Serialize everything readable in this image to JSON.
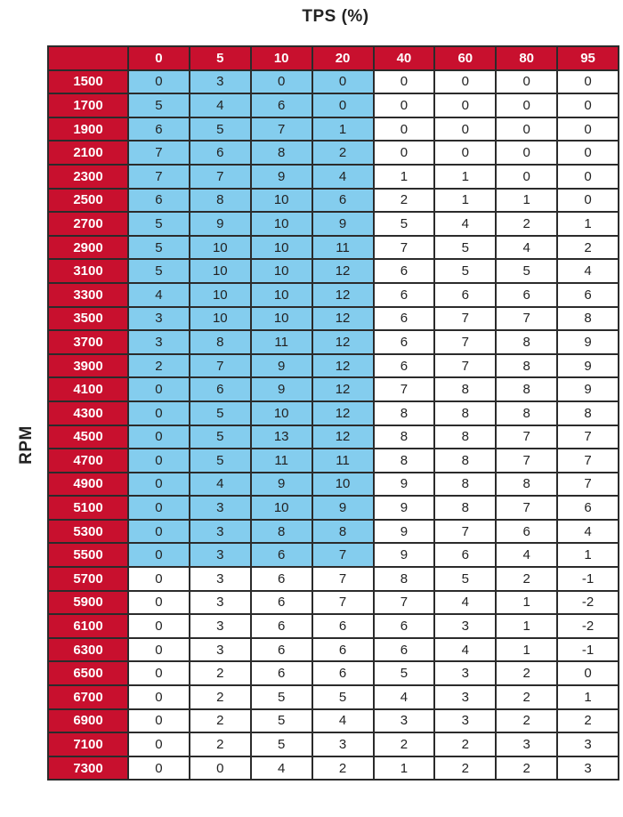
{
  "chart_data": {
    "type": "table",
    "title": "TPS (%)",
    "ylabel": "RPM",
    "colors": {
      "header": "#c8102e",
      "highlight": "#84cdee",
      "cell": "#ffffff"
    },
    "highlighted_region": {
      "rpm": [
        1500,
        5500
      ],
      "tps": [
        0,
        20
      ]
    },
    "columns": [
      "0",
      "5",
      "10",
      "20",
      "40",
      "60",
      "80",
      "95"
    ],
    "rows": [
      {
        "rpm": "1500",
        "values": [
          0,
          3,
          0,
          0,
          0,
          0,
          0,
          0
        ]
      },
      {
        "rpm": "1700",
        "values": [
          5,
          4,
          6,
          0,
          0,
          0,
          0,
          0
        ]
      },
      {
        "rpm": "1900",
        "values": [
          6,
          5,
          7,
          1,
          0,
          0,
          0,
          0
        ]
      },
      {
        "rpm": "2100",
        "values": [
          7,
          6,
          8,
          2,
          0,
          0,
          0,
          0
        ]
      },
      {
        "rpm": "2300",
        "values": [
          7,
          7,
          9,
          4,
          1,
          1,
          0,
          0
        ]
      },
      {
        "rpm": "2500",
        "values": [
          6,
          8,
          10,
          6,
          2,
          1,
          1,
          0
        ]
      },
      {
        "rpm": "2700",
        "values": [
          5,
          9,
          10,
          9,
          5,
          4,
          2,
          1
        ]
      },
      {
        "rpm": "2900",
        "values": [
          5,
          10,
          10,
          11,
          7,
          5,
          4,
          2
        ]
      },
      {
        "rpm": "3100",
        "values": [
          5,
          10,
          10,
          12,
          6,
          5,
          5,
          4
        ]
      },
      {
        "rpm": "3300",
        "values": [
          4,
          10,
          10,
          12,
          6,
          6,
          6,
          6
        ]
      },
      {
        "rpm": "3500",
        "values": [
          3,
          10,
          10,
          12,
          6,
          7,
          7,
          8
        ]
      },
      {
        "rpm": "3700",
        "values": [
          3,
          8,
          11,
          12,
          6,
          7,
          8,
          9
        ]
      },
      {
        "rpm": "3900",
        "values": [
          2,
          7,
          9,
          12,
          6,
          7,
          8,
          9
        ]
      },
      {
        "rpm": "4100",
        "values": [
          0,
          6,
          9,
          12,
          7,
          8,
          8,
          9
        ]
      },
      {
        "rpm": "4300",
        "values": [
          0,
          5,
          10,
          12,
          8,
          8,
          8,
          8
        ]
      },
      {
        "rpm": "4500",
        "values": [
          0,
          5,
          13,
          12,
          8,
          8,
          7,
          7
        ]
      },
      {
        "rpm": "4700",
        "values": [
          0,
          5,
          11,
          11,
          8,
          8,
          7,
          7
        ]
      },
      {
        "rpm": "4900",
        "values": [
          0,
          4,
          9,
          10,
          9,
          8,
          8,
          7
        ]
      },
      {
        "rpm": "5100",
        "values": [
          0,
          3,
          10,
          9,
          9,
          8,
          7,
          6
        ]
      },
      {
        "rpm": "5300",
        "values": [
          0,
          3,
          8,
          8,
          9,
          7,
          6,
          4
        ]
      },
      {
        "rpm": "5500",
        "values": [
          0,
          3,
          6,
          7,
          9,
          6,
          4,
          1
        ]
      },
      {
        "rpm": "5700",
        "values": [
          0,
          3,
          6,
          7,
          8,
          5,
          2,
          -1
        ]
      },
      {
        "rpm": "5900",
        "values": [
          0,
          3,
          6,
          7,
          7,
          4,
          1,
          -2
        ]
      },
      {
        "rpm": "6100",
        "values": [
          0,
          3,
          6,
          6,
          6,
          3,
          1,
          -2
        ]
      },
      {
        "rpm": "6300",
        "values": [
          0,
          3,
          6,
          6,
          6,
          4,
          1,
          -1
        ]
      },
      {
        "rpm": "6500",
        "values": [
          0,
          2,
          6,
          6,
          5,
          3,
          2,
          0
        ]
      },
      {
        "rpm": "6700",
        "values": [
          0,
          2,
          5,
          5,
          4,
          3,
          2,
          1
        ]
      },
      {
        "rpm": "6900",
        "values": [
          0,
          2,
          5,
          4,
          3,
          3,
          2,
          2
        ]
      },
      {
        "rpm": "7100",
        "values": [
          0,
          2,
          5,
          3,
          2,
          2,
          3,
          3
        ]
      },
      {
        "rpm": "7300",
        "values": [
          0,
          0,
          4,
          2,
          1,
          2,
          2,
          3
        ]
      }
    ]
  }
}
